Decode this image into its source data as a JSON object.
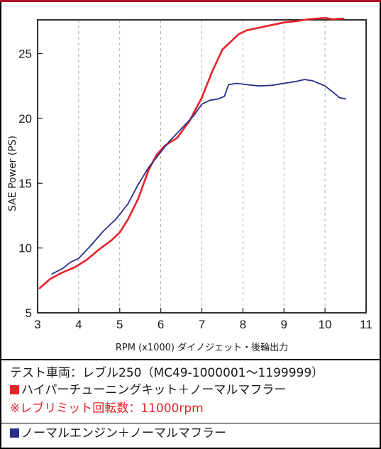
{
  "chart_data": {
    "type": "line",
    "xlabel": "RPM (x1000) ダイノジェット・後輪出力",
    "ylabel": "SAE Power (PS)",
    "xlim": [
      3,
      11
    ],
    "ylim": [
      5,
      27.6
    ],
    "xticks": [
      3,
      4,
      5,
      6,
      7,
      8,
      9,
      10,
      11
    ],
    "yticks": [
      5,
      10,
      15,
      20,
      25
    ],
    "grid": "vertical-dashed",
    "series": [
      {
        "name": "ハイパーチューニングキット＋ノーマルマフラー",
        "color": "#e8202a",
        "points": [
          [
            3.05,
            6.9
          ],
          [
            3.3,
            7.6
          ],
          [
            3.6,
            8.1
          ],
          [
            3.9,
            8.5
          ],
          [
            4.2,
            9.1
          ],
          [
            4.5,
            9.9
          ],
          [
            4.8,
            10.6
          ],
          [
            5.0,
            11.2
          ],
          [
            5.2,
            12.2
          ],
          [
            5.45,
            13.8
          ],
          [
            5.7,
            16.0
          ],
          [
            5.9,
            17.2
          ],
          [
            6.1,
            17.9
          ],
          [
            6.4,
            18.5
          ],
          [
            6.7,
            19.8
          ],
          [
            7.0,
            21.6
          ],
          [
            7.25,
            23.6
          ],
          [
            7.5,
            25.3
          ],
          [
            7.7,
            25.9
          ],
          [
            7.9,
            26.5
          ],
          [
            8.1,
            26.8
          ],
          [
            8.4,
            27.0
          ],
          [
            8.7,
            27.2
          ],
          [
            9.0,
            27.4
          ],
          [
            9.3,
            27.5
          ],
          [
            9.6,
            27.65
          ],
          [
            10.0,
            27.75
          ],
          [
            10.2,
            27.65
          ],
          [
            10.45,
            27.7
          ]
        ]
      },
      {
        "name": "ノーマルエンジン＋ノーマルマフラー",
        "color": "#2a2e8a",
        "points": [
          [
            3.35,
            8.0
          ],
          [
            3.6,
            8.4
          ],
          [
            3.8,
            8.9
          ],
          [
            4.0,
            9.2
          ],
          [
            4.3,
            10.2
          ],
          [
            4.6,
            11.3
          ],
          [
            4.9,
            12.2
          ],
          [
            5.2,
            13.4
          ],
          [
            5.45,
            14.9
          ],
          [
            5.7,
            16.2
          ],
          [
            5.95,
            17.2
          ],
          [
            6.2,
            18.2
          ],
          [
            6.5,
            19.2
          ],
          [
            6.8,
            20.2
          ],
          [
            7.0,
            21.1
          ],
          [
            7.2,
            21.4
          ],
          [
            7.4,
            21.5
          ],
          [
            7.55,
            21.7
          ],
          [
            7.65,
            22.6
          ],
          [
            7.85,
            22.7
          ],
          [
            8.1,
            22.6
          ],
          [
            8.4,
            22.5
          ],
          [
            8.7,
            22.55
          ],
          [
            9.0,
            22.7
          ],
          [
            9.3,
            22.85
          ],
          [
            9.5,
            23.0
          ],
          [
            9.7,
            22.9
          ],
          [
            10.0,
            22.5
          ],
          [
            10.2,
            22.0
          ],
          [
            10.35,
            21.6
          ],
          [
            10.5,
            21.5
          ]
        ]
      }
    ]
  },
  "legend": {
    "vehicle": "テスト車両：レブル250（MC49-1000001～1199999）",
    "series1_label": "ハイパーチューニングキット＋ノーマルマフラー",
    "limit_note": "※レブリミット回転数：11000rpm",
    "series2_label": "ノーマルエンジン＋ノーマルマフラー",
    "series1_color": "#e8202a",
    "series2_color": "#2a2e8a",
    "note_color": "#e8202a"
  }
}
